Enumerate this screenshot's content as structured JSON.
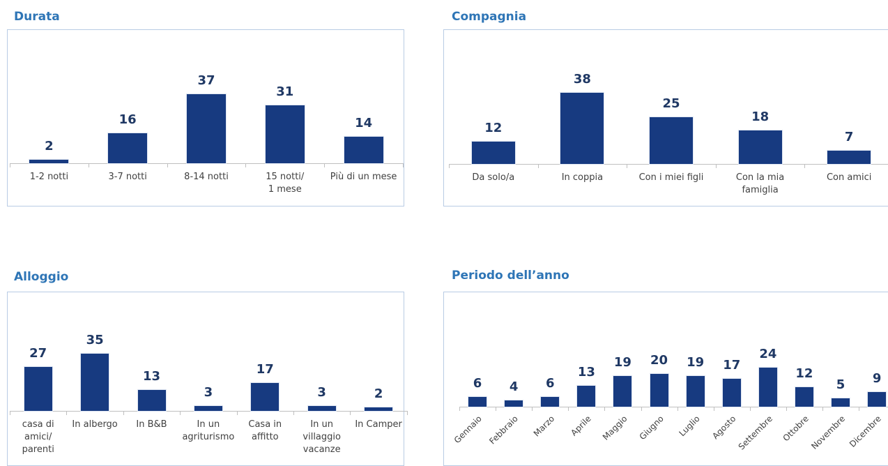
{
  "chart_data": [
    {
      "type": "bar",
      "title": "Durata",
      "color": "#173a80",
      "categories": [
        "1-2 notti",
        "3-7 notti",
        "8-14 notti",
        "15 notti/\n1 mese",
        "Più di un mese"
      ],
      "values": [
        2,
        16,
        37,
        31,
        14
      ]
    },
    {
      "type": "bar",
      "title": "Compagnia",
      "color": "#173a80",
      "categories": [
        "Da solo/a",
        "In coppia",
        "Con i miei figli",
        "Con la mia\nfamiglia",
        "Con amici"
      ],
      "values": [
        12,
        38,
        25,
        18,
        7
      ]
    },
    {
      "type": "bar",
      "title": "Alloggio",
      "color": "#173a80",
      "categories": [
        "casa di\namici/\nparenti",
        "In albergo",
        "In B&B",
        "In un\nagriturismo",
        "Casa in\naffitto",
        "In un\nvillaggio\nvacanze",
        "In Camper"
      ],
      "values": [
        27,
        35,
        13,
        3,
        17,
        3,
        2
      ]
    },
    {
      "type": "bar",
      "title": "Periodo dell’anno",
      "color": "#173a80",
      "categories": [
        "Gennaio",
        "Febbraio",
        "Marzo",
        "Aprile",
        "Maggio",
        "Giugno",
        "Luglio",
        "Agosto",
        "Settembre",
        "Ottobre",
        "Novembre",
        "Dicembre"
      ],
      "values": [
        6,
        4,
        6,
        13,
        19,
        20,
        19,
        17,
        24,
        12,
        5,
        9
      ]
    }
  ]
}
